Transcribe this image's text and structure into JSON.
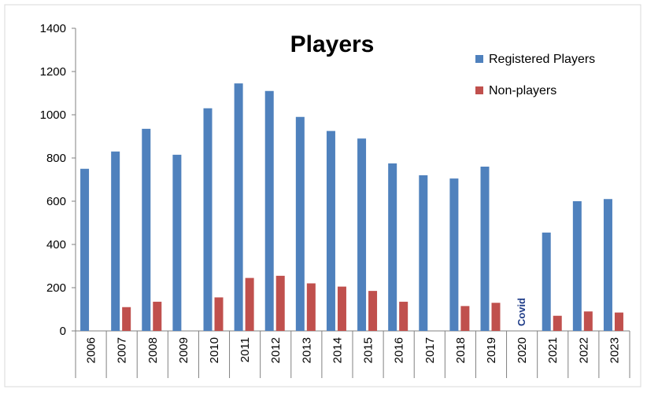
{
  "chart_data": {
    "type": "bar",
    "title": "Players",
    "xlabel": "",
    "ylabel": "",
    "ylim": [
      0,
      1400
    ],
    "yticks": [
      0,
      200,
      400,
      600,
      800,
      1000,
      1200,
      1400
    ],
    "grid": false,
    "legend_position": "top-right",
    "categories": [
      "2006",
      "2007",
      "2008",
      "2009",
      "2010",
      "2011",
      "2012",
      "2013",
      "2014",
      "2015",
      "2016",
      "2017",
      "2018",
      "2019",
      "2020",
      "2021",
      "2022",
      "2023"
    ],
    "series": [
      {
        "name": "Registered Players",
        "color": "#4f81bd",
        "values": [
          750,
          830,
          935,
          815,
          1030,
          1145,
          1110,
          990,
          925,
          890,
          775,
          720,
          705,
          760,
          null,
          455,
          600,
          610
        ]
      },
      {
        "name": "Non-players",
        "color": "#c0504d",
        "values": [
          null,
          110,
          135,
          null,
          155,
          245,
          255,
          220,
          205,
          185,
          135,
          null,
          115,
          130,
          null,
          70,
          90,
          85
        ]
      }
    ],
    "annotations": [
      {
        "text": "Covid",
        "category": "2020"
      }
    ]
  }
}
